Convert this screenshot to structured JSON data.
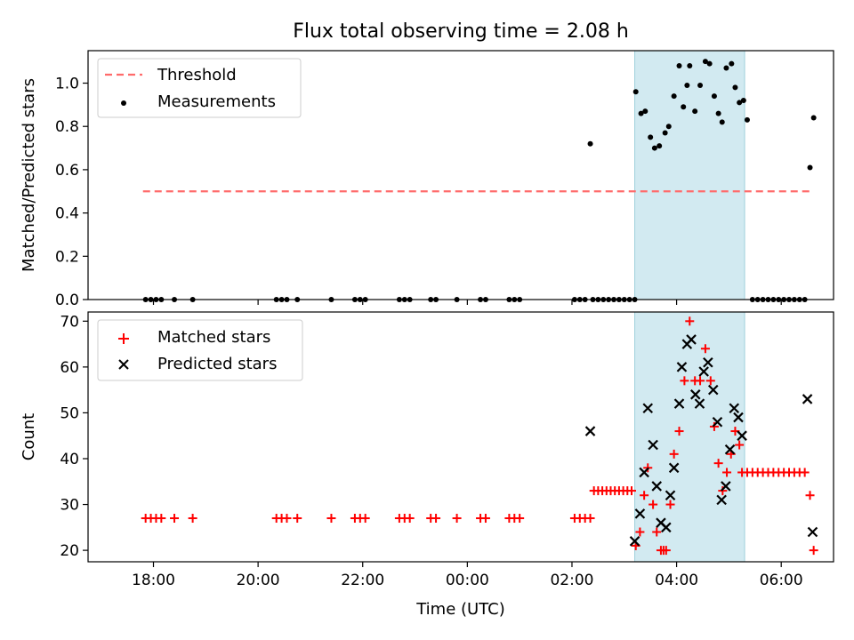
{
  "chart_data": [
    {
      "type": "scatter",
      "title": "Flux total observing time = 2.08 h",
      "xlabel": "",
      "ylabel": "Matched/Predicted stars",
      "xlim_hours": [
        16.75,
        31.0
      ],
      "ylim": [
        0,
        1.15
      ],
      "yticks": [
        0.0,
        0.2,
        0.4,
        0.6,
        0.8,
        1.0
      ],
      "xtick_positions_hours": [
        18,
        20,
        22,
        24,
        26,
        28,
        30
      ],
      "grid": false,
      "legend": "top-left",
      "shaded_interval_hours": [
        27.2,
        29.3
      ],
      "shade_color": "#add8e6",
      "series": [
        {
          "name": "Threshold",
          "style": "dashed-line",
          "color": "#ff6b6b",
          "x": [
            17.8,
            30.55
          ],
          "y": [
            0.5,
            0.5
          ]
        },
        {
          "name": "Measurements",
          "style": "dot",
          "color": "#000000",
          "x": [
            17.85,
            17.95,
            18.05,
            18.15,
            18.4,
            18.75,
            20.35,
            20.45,
            20.55,
            20.75,
            21.4,
            21.85,
            21.95,
            22.05,
            22.7,
            22.8,
            22.9,
            23.3,
            23.4,
            23.8,
            24.25,
            24.35,
            24.8,
            24.9,
            25.0,
            26.05,
            26.15,
            26.25,
            26.35,
            26.4,
            26.5,
            26.6,
            26.7,
            26.8,
            26.9,
            27.0,
            27.1,
            27.2,
            27.22,
            27.32,
            27.4,
            27.5,
            27.58,
            27.67,
            27.78,
            27.85,
            27.95,
            28.05,
            28.13,
            28.2,
            28.25,
            28.35,
            28.45,
            28.55,
            28.63,
            28.72,
            28.8,
            28.87,
            28.95,
            29.05,
            29.12,
            29.2,
            29.28,
            29.35,
            29.45,
            29.55,
            29.65,
            29.75,
            29.85,
            29.95,
            30.05,
            30.15,
            30.25,
            30.35,
            30.45,
            30.55,
            30.62
          ],
          "y": [
            0,
            0,
            0,
            0,
            0,
            0,
            0,
            0,
            0,
            0,
            0,
            0,
            0,
            0,
            0,
            0,
            0,
            0,
            0,
            0,
            0,
            0,
            0,
            0,
            0,
            0,
            0,
            0,
            0.72,
            0,
            0,
            0,
            0,
            0,
            0,
            0,
            0,
            0,
            0.96,
            0.86,
            0.87,
            0.75,
            0.7,
            0.71,
            0.77,
            0.8,
            0.94,
            1.08,
            0.89,
            0.99,
            1.08,
            0.87,
            0.99,
            1.1,
            1.09,
            0.94,
            0.86,
            0.82,
            1.07,
            1.09,
            0.98,
            0.91,
            0.92,
            0.83,
            0,
            0,
            0,
            0,
            0,
            0,
            0,
            0,
            0,
            0,
            0,
            0.61,
            0.84
          ]
        }
      ]
    },
    {
      "type": "scatter",
      "title": "",
      "xlabel": "Time (UTC)",
      "ylabel": "Count",
      "xlim_hours": [
        16.75,
        31.0
      ],
      "ylim": [
        17.5,
        72
      ],
      "yticks": [
        20,
        30,
        40,
        50,
        60,
        70
      ],
      "xtick_positions_hours": [
        18,
        20,
        22,
        24,
        26,
        28,
        30
      ],
      "xtick_labels": [
        "18:00",
        "20:00",
        "22:00",
        "00:00",
        "02:00",
        "04:00",
        "06:00"
      ],
      "grid": false,
      "legend": "top-left",
      "shaded_interval_hours": [
        27.2,
        29.3
      ],
      "shade_color": "#add8e6",
      "series": [
        {
          "name": "Matched stars",
          "marker": "plus",
          "color": "#ff0000",
          "x": [
            17.85,
            17.95,
            18.05,
            18.15,
            18.4,
            18.75,
            20.35,
            20.45,
            20.55,
            20.75,
            21.4,
            21.85,
            21.95,
            22.05,
            22.7,
            22.8,
            22.9,
            23.3,
            23.4,
            23.8,
            24.25,
            24.35,
            24.8,
            24.9,
            25.0,
            26.05,
            26.15,
            26.25,
            26.35,
            26.42,
            26.5,
            26.58,
            26.66,
            26.74,
            26.82,
            26.9,
            26.98,
            27.06,
            27.14,
            27.22,
            27.3,
            27.38,
            27.45,
            27.55,
            27.62,
            27.7,
            27.75,
            27.8,
            27.88,
            27.95,
            28.05,
            28.15,
            28.25,
            28.35,
            28.45,
            28.55,
            28.65,
            28.72,
            28.8,
            28.88,
            28.96,
            29.04,
            29.12,
            29.2,
            29.25,
            29.35,
            29.45,
            29.55,
            29.65,
            29.75,
            29.85,
            29.95,
            30.05,
            30.15,
            30.25,
            30.35,
            30.45,
            30.55,
            30.62
          ],
          "y": [
            27,
            27,
            27,
            27,
            27,
            27,
            27,
            27,
            27,
            27,
            27,
            27,
            27,
            27,
            27,
            27,
            27,
            27,
            27,
            27,
            27,
            27,
            27,
            27,
            27,
            27,
            27,
            27,
            27,
            33,
            33,
            33,
            33,
            33,
            33,
            33,
            33,
            33,
            33,
            21,
            24,
            32,
            38,
            30,
            24,
            20,
            20,
            20,
            30,
            41,
            46,
            57,
            70,
            57,
            57,
            64,
            57,
            47,
            39,
            33,
            37,
            41,
            46,
            43,
            37,
            37,
            37,
            37,
            37,
            37,
            37,
            37,
            37,
            37,
            37,
            37,
            37,
            32,
            20
          ]
        },
        {
          "name": "Predicted stars",
          "marker": "x",
          "color": "#000000",
          "x": [
            26.35,
            27.2,
            27.3,
            27.38,
            27.45,
            27.55,
            27.62,
            27.7,
            27.8,
            27.88,
            27.95,
            28.05,
            28.1,
            28.2,
            28.28,
            28.36,
            28.44,
            28.52,
            28.6,
            28.7,
            28.78,
            28.86,
            28.94,
            29.02,
            29.1,
            29.18,
            29.25,
            30.5,
            30.6
          ],
          "y": [
            46,
            22,
            28,
            37,
            51,
            43,
            34,
            26,
            25,
            32,
            38,
            52,
            60,
            65,
            66,
            54,
            52,
            59,
            61,
            55,
            48,
            31,
            34,
            42,
            51,
            49,
            45,
            53,
            24
          ]
        }
      ]
    }
  ]
}
